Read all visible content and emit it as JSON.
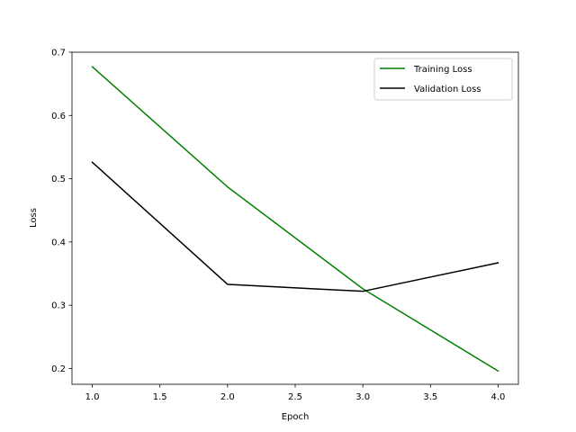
{
  "chart_data": {
    "type": "line",
    "title": "",
    "xlabel": "Epoch",
    "ylabel": "Loss",
    "x": [
      1.0,
      2.0,
      3.0,
      4.0
    ],
    "xlim": [
      0.85,
      4.15
    ],
    "ylim": [
      0.175,
      0.7
    ],
    "xticks": [
      1.0,
      1.5,
      2.0,
      2.5,
      3.0,
      3.5,
      4.0
    ],
    "xtick_labels": [
      "1.0",
      "1.5",
      "2.0",
      "2.5",
      "3.0",
      "3.5",
      "4.0"
    ],
    "yticks": [
      0.2,
      0.3,
      0.4,
      0.5,
      0.6,
      0.7
    ],
    "ytick_labels": [
      "0.2",
      "0.3",
      "0.4",
      "0.5",
      "0.6",
      "0.7"
    ],
    "grid": false,
    "legend_position": "top-right",
    "series": [
      {
        "name": "Training Loss",
        "color": "#008000",
        "values": [
          0.677,
          0.487,
          0.326,
          0.196
        ]
      },
      {
        "name": "Validation Loss",
        "color": "#000000",
        "values": [
          0.526,
          0.333,
          0.322,
          0.367
        ]
      }
    ]
  }
}
